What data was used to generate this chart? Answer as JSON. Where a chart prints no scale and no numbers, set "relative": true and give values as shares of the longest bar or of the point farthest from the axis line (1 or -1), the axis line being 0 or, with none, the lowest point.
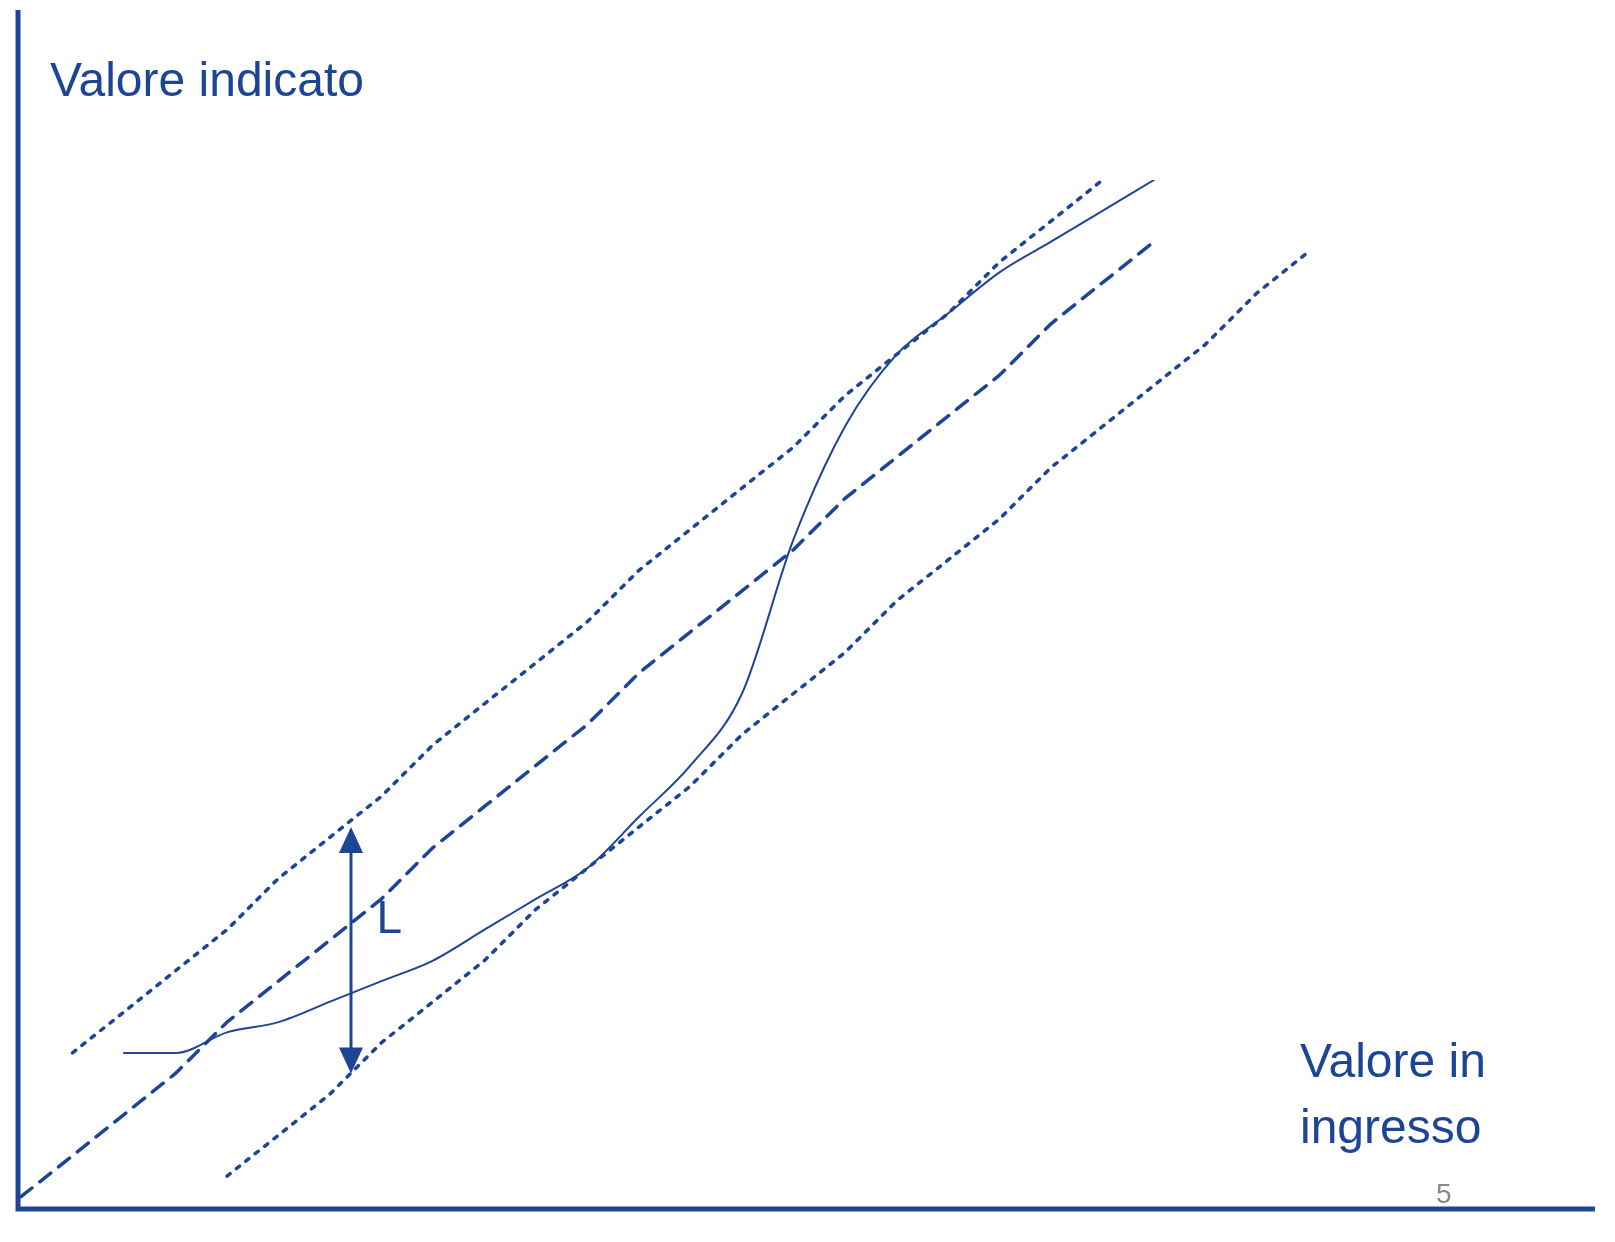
{
  "chart_data": {
    "type": "line",
    "relative": true,
    "xlabel": "Valore in ingresso",
    "ylabel": "Valore indicato",
    "annotations": [
      "L",
      "5"
    ],
    "legend": false,
    "marker": "none",
    "categories": [
      null,
      null,
      null,
      null,
      null,
      null,
      null,
      null,
      null,
      null,
      null,
      null,
      null,
      null,
      null,
      null,
      null,
      null,
      null,
      null,
      null,
      null,
      null,
      null,
      null,
      null,
      null,
      null,
      null,
      null,
      null
    ],
    "series": [
      {
        "color": "#1c4595",
        "line_style": "dashed",
        "values": [
          0.01,
          0.05,
          0.09,
          0.13,
          0.18,
          0.22,
          0.26,
          0.3,
          0.35,
          0.39,
          0.43,
          0.47,
          0.52,
          0.56,
          0.6,
          0.64,
          0.69,
          0.73,
          0.77,
          0.81,
          0.86,
          0.9,
          0.94,
          null,
          null,
          null,
          null,
          null,
          null,
          null,
          null
        ]
      },
      {
        "color": "#1c4595",
        "line_style": "dotted",
        "values": [
          null,
          0.15,
          0.19,
          0.23,
          0.27,
          0.32,
          0.36,
          0.4,
          0.45,
          0.49,
          0.53,
          0.57,
          0.62,
          0.66,
          0.7,
          0.74,
          0.79,
          0.83,
          0.87,
          0.92,
          0.96,
          1,
          null,
          null,
          null,
          null,
          null,
          null,
          null,
          null,
          null
        ]
      },
      {
        "color": "#1c4595",
        "line_style": "dotted",
        "values": [
          null,
          null,
          null,
          null,
          0.03,
          0.07,
          0.11,
          0.16,
          0.2,
          0.24,
          0.29,
          0.33,
          0.37,
          0.41,
          0.46,
          0.5,
          0.54,
          0.59,
          0.63,
          0.67,
          0.72,
          0.76,
          0.8,
          0.84,
          0.89,
          0.93,
          null,
          null,
          null,
          null,
          null
        ]
      },
      {
        "color": "#1c4595",
        "line_style": "solid",
        "values": [
          null,
          null,
          0.15,
          0.15,
          0.17,
          0.18,
          0.2,
          0.22,
          0.24,
          0.27,
          0.3,
          0.33,
          0.38,
          0.43,
          0.5,
          0.65,
          0.76,
          0.83,
          0.87,
          0.91,
          0.94,
          0.97,
          1,
          null,
          null,
          null,
          null,
          null,
          null,
          null,
          null
        ]
      }
    ]
  }
}
